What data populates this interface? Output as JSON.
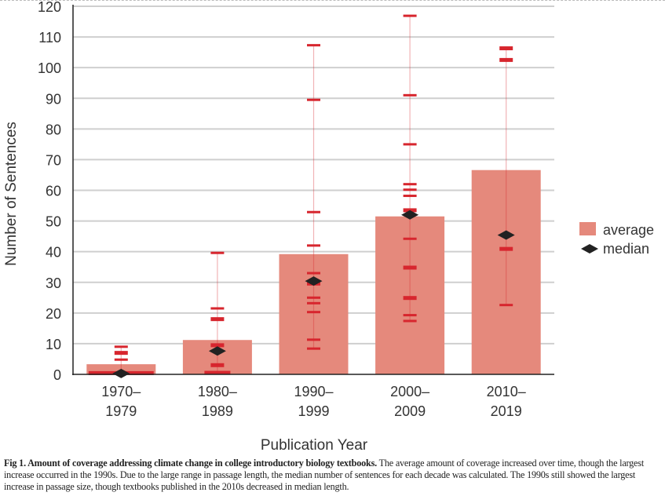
{
  "chart_data": {
    "type": "bar",
    "title": "",
    "xlabel": "Publication Year",
    "ylabel": "Number of Sentences",
    "ylim": [
      0,
      120
    ],
    "yticks": [
      0,
      10,
      20,
      30,
      40,
      50,
      60,
      70,
      80,
      90,
      100,
      110,
      120
    ],
    "grid": true,
    "categories": [
      [
        "1970–",
        "1979"
      ],
      [
        "1980–",
        "1989"
      ],
      [
        "1990–",
        "1999"
      ],
      [
        "2000–",
        "2009"
      ],
      [
        "2010–",
        "2019"
      ]
    ],
    "series": [
      {
        "name": "average",
        "values": [
          3.3,
          11.2,
          39.2,
          51.5,
          66.6
        ],
        "color": "#e5897c"
      },
      {
        "name": "median",
        "values": [
          0.3,
          7.6,
          30.4,
          52.0,
          45.4
        ],
        "color": "#222222"
      }
    ],
    "individual_points": [
      [
        {
          "v": 9.0,
          "n": 1
        },
        {
          "v": 7.0,
          "n": 2
        },
        {
          "v": 4.8,
          "n": 1
        },
        {
          "v": 0.4,
          "n": 5
        }
      ],
      [
        {
          "v": 39.6,
          "n": 1
        },
        {
          "v": 21.5,
          "n": 1
        },
        {
          "v": 18.0,
          "n": 2
        },
        {
          "v": 9.5,
          "n": 2
        },
        {
          "v": 3.0,
          "n": 2
        },
        {
          "v": 0.5,
          "n": 3
        }
      ],
      [
        {
          "v": 107.3,
          "n": 1
        },
        {
          "v": 89.5,
          "n": 1
        },
        {
          "v": 52.9,
          "n": 1
        },
        {
          "v": 42.0,
          "n": 1
        },
        {
          "v": 33.0,
          "n": 1
        },
        {
          "v": 29.6,
          "n": 2
        },
        {
          "v": 25.0,
          "n": 1
        },
        {
          "v": 23.2,
          "n": 1
        },
        {
          "v": 20.3,
          "n": 1
        },
        {
          "v": 11.3,
          "n": 1
        },
        {
          "v": 8.4,
          "n": 1
        }
      ],
      [
        {
          "v": 116.9,
          "n": 1
        },
        {
          "v": 91.0,
          "n": 1
        },
        {
          "v": 75.0,
          "n": 1
        },
        {
          "v": 62.0,
          "n": 1
        },
        {
          "v": 60.2,
          "n": 1
        },
        {
          "v": 58.2,
          "n": 1
        },
        {
          "v": 53.5,
          "n": 2
        },
        {
          "v": 44.2,
          "n": 1
        },
        {
          "v": 34.8,
          "n": 2
        },
        {
          "v": 24.9,
          "n": 2
        },
        {
          "v": 19.3,
          "n": 1
        },
        {
          "v": 17.4,
          "n": 1
        }
      ],
      [
        {
          "v": 106.3,
          "n": 2
        },
        {
          "v": 102.5,
          "n": 2
        },
        {
          "v": 45.4,
          "n": 1
        },
        {
          "v": 40.9,
          "n": 2
        },
        {
          "v": 22.6,
          "n": 1
        }
      ]
    ],
    "point_color": "#d7262e",
    "legend": {
      "placement": "right",
      "entries": [
        "average",
        "median"
      ]
    }
  },
  "caption": {
    "label": "Fig 1. Amount of coverage addressing climate change in college introductory biology textbooks.",
    "text": " The average amount of coverage increased over time, though the largest increase occurred in the 1990s. Due to the large range in passage length, the median number of sentences for each decade was calculated. The 1990s still showed the largest increase in passage size, though textbooks published in the 2010s decreased in median length."
  }
}
